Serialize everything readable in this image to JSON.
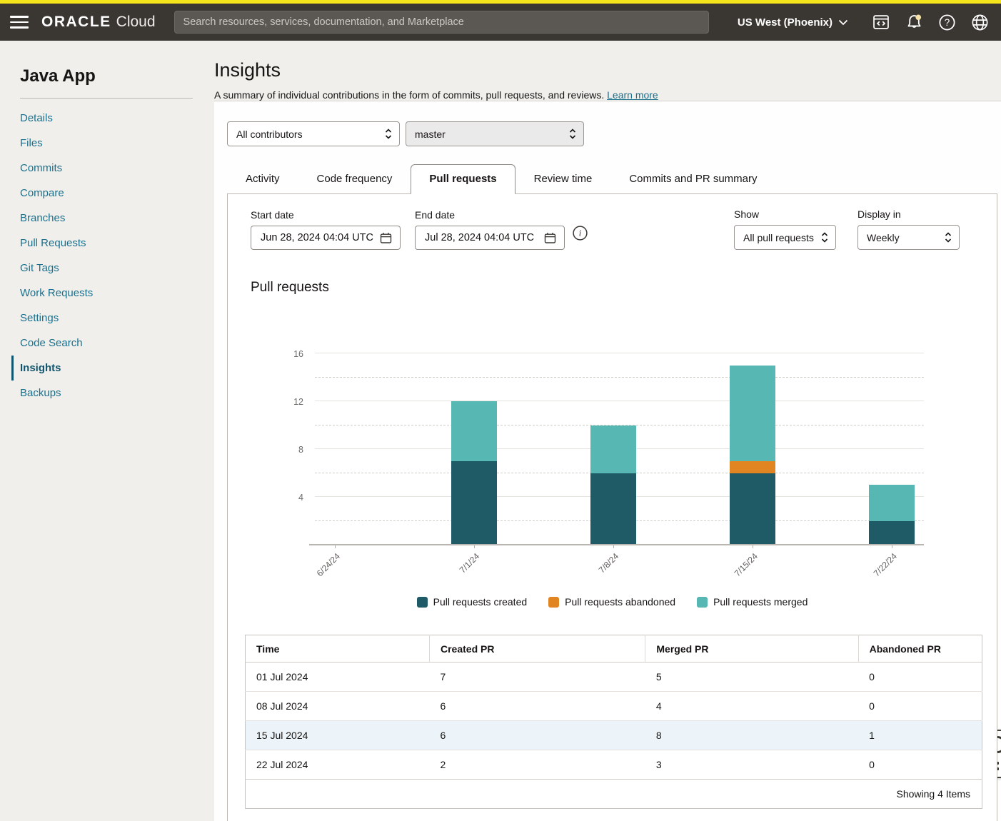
{
  "header": {
    "brand_bold": "ORACLE",
    "brand_light": "Cloud",
    "search_placeholder": "Search resources, services, documentation, and Marketplace",
    "region": "US West (Phoenix)",
    "accent_color": "#f3e41c",
    "bar_color": "#3a3632",
    "icons": [
      "menu-icon",
      "cloud-shell-icon",
      "notifications-bell-icon",
      "help-icon",
      "language-globe-icon"
    ]
  },
  "sidebar": {
    "title": "Java App",
    "items": [
      {
        "label": "Details",
        "active": false
      },
      {
        "label": "Files",
        "active": false
      },
      {
        "label": "Commits",
        "active": false
      },
      {
        "label": "Compare",
        "active": false
      },
      {
        "label": "Branches",
        "active": false
      },
      {
        "label": "Pull Requests",
        "active": false
      },
      {
        "label": "Git Tags",
        "active": false
      },
      {
        "label": "Work Requests",
        "active": false
      },
      {
        "label": "Settings",
        "active": false
      },
      {
        "label": "Code Search",
        "active": false
      },
      {
        "label": "Insights",
        "active": true
      },
      {
        "label": "Backups",
        "active": false
      }
    ]
  },
  "page": {
    "title": "Insights",
    "description": "A summary of individual contributions in the form of commits, pull requests, and reviews.",
    "learn_more": "Learn more"
  },
  "controls": {
    "contributors": "All contributors",
    "branch": "master"
  },
  "tabs": {
    "items": [
      "Activity",
      "Code frequency",
      "Pull requests",
      "Review time",
      "Commits and PR summary"
    ],
    "active": "Pull requests"
  },
  "filters": {
    "start_date_label": "Start date",
    "start_date": "Jun 28, 2024 04:04 UTC",
    "end_date_label": "End date",
    "end_date": "Jul 28, 2024 04:04 UTC",
    "show_label": "Show",
    "show_value": "All pull requests",
    "display_label": "Display in",
    "display_value": "Weekly"
  },
  "chart_data": {
    "type": "bar",
    "stacked": true,
    "title": "Pull requests",
    "categories": [
      "6/24/24",
      "7/1/24",
      "7/8/24",
      "7/15/24",
      "7/22/24"
    ],
    "series": [
      {
        "name": "Pull requests created",
        "color": "#1e5b66",
        "values": [
          0,
          7,
          6,
          6,
          2
        ]
      },
      {
        "name": "Pull requests abandoned",
        "color": "#e18523",
        "values": [
          0,
          0,
          0,
          1,
          0
        ]
      },
      {
        "name": "Pull requests merged",
        "color": "#57b7b3",
        "values": [
          0,
          5,
          4,
          8,
          3
        ]
      }
    ],
    "stack_order": "bottom to top: created, abandoned, merged",
    "ylim": [
      0,
      16
    ],
    "yticks": [
      4,
      8,
      12,
      16
    ],
    "minor_gridlines": [
      2,
      6,
      10,
      14
    ],
    "grid": "solid major lines, dashed minor lines",
    "legend_position": "bottom"
  },
  "table": {
    "columns": [
      "Time",
      "Created PR",
      "Merged PR",
      "Abandoned PR"
    ],
    "rows": [
      {
        "time": "01 Jul 2024",
        "created": "7",
        "merged": "5",
        "abandoned": "0"
      },
      {
        "time": "08 Jul 2024",
        "created": "6",
        "merged": "4",
        "abandoned": "0"
      },
      {
        "time": "15 Jul 2024",
        "created": "6",
        "merged": "8",
        "abandoned": "1"
      },
      {
        "time": "22 Jul 2024",
        "created": "2",
        "merged": "3",
        "abandoned": "0"
      }
    ],
    "highlighted_row_index": 2,
    "footer": "Showing 4 Items"
  }
}
